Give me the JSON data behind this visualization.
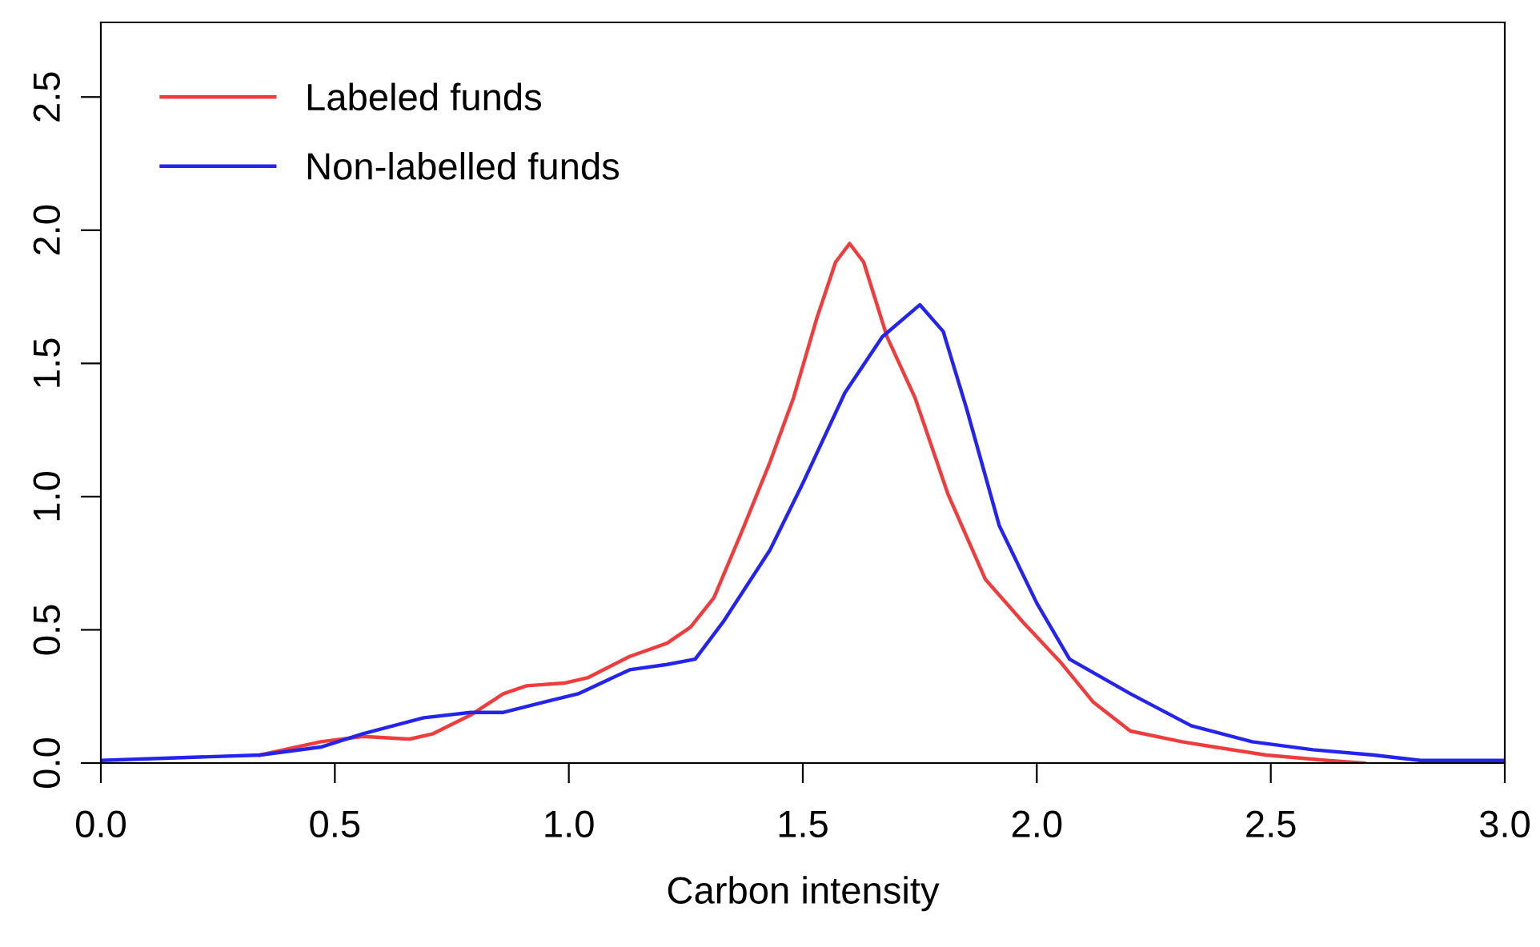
{
  "chart_data": {
    "type": "line",
    "xlabel": "Carbon intensity",
    "xlim": [
      0,
      3
    ],
    "ylim": [
      0,
      2.78
    ],
    "xticks": [
      {
        "value": 0,
        "label": "0.0"
      },
      {
        "value": 0.5,
        "label": "0.5"
      },
      {
        "value": 1,
        "label": "1.0"
      },
      {
        "value": 1.5,
        "label": "1.5"
      },
      {
        "value": 2,
        "label": "2.0"
      },
      {
        "value": 2.5,
        "label": "2.5"
      },
      {
        "value": 3,
        "label": "3.0"
      }
    ],
    "yticks": [
      {
        "value": 0,
        "label": "0.0"
      },
      {
        "value": 0.5,
        "label": "0.5"
      },
      {
        "value": 1,
        "label": "1.0"
      },
      {
        "value": 1.5,
        "label": "1.5"
      },
      {
        "value": 2,
        "label": "2.0"
      },
      {
        "value": 2.5,
        "label": "2.5"
      }
    ],
    "grid": false,
    "legend": "top left",
    "line_style": "solid",
    "marker": "none",
    "series": [
      {
        "name": "Labeled funds",
        "color": "#f03c3c",
        "x": [
          0.34,
          0.47,
          0.56,
          0.66,
          0.71,
          0.79,
          0.86,
          0.91,
          0.99,
          1.04,
          1.13,
          1.21,
          1.26,
          1.31,
          1.37,
          1.43,
          1.48,
          1.53,
          1.57,
          1.6,
          1.63,
          1.68,
          1.74,
          1.81,
          1.89,
          1.97,
          2.05,
          2.12,
          2.2,
          2.31,
          2.38,
          2.49,
          2.62,
          2.7
        ],
        "values": [
          0.03,
          0.08,
          0.1,
          0.09,
          0.11,
          0.18,
          0.26,
          0.29,
          0.3,
          0.32,
          0.4,
          0.45,
          0.51,
          0.62,
          0.87,
          1.13,
          1.37,
          1.67,
          1.88,
          1.95,
          1.88,
          1.6,
          1.37,
          1.01,
          0.69,
          0.53,
          0.38,
          0.23,
          0.12,
          0.08,
          0.06,
          0.03,
          0.01,
          0
        ]
      },
      {
        "name": "Non-labelled funds",
        "color": "#2424ee",
        "x": [
          0,
          0.34,
          0.47,
          0.56,
          0.69,
          0.79,
          0.86,
          0.95,
          1.02,
          1.13,
          1.21,
          1.27,
          1.33,
          1.43,
          1.5,
          1.59,
          1.67,
          1.75,
          1.8,
          1.85,
          1.92,
          2.0,
          2.07,
          2.2,
          2.33,
          2.46,
          2.59,
          2.72,
          2.82,
          3.0
        ],
        "values": [
          0.01,
          0.03,
          0.06,
          0.11,
          0.17,
          0.19,
          0.19,
          0.23,
          0.26,
          0.35,
          0.37,
          0.39,
          0.53,
          0.8,
          1.05,
          1.39,
          1.6,
          1.72,
          1.62,
          1.33,
          0.89,
          0.6,
          0.39,
          0.26,
          0.14,
          0.08,
          0.05,
          0.03,
          0.01,
          0.01
        ]
      }
    ]
  }
}
